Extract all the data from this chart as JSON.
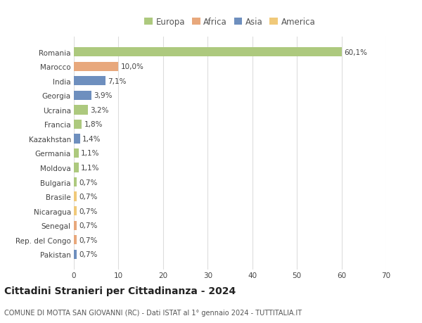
{
  "title": "Cittadini Stranieri per Cittadinanza - 2024",
  "subtitle": "COMUNE DI MOTTA SAN GIOVANNI (RC) - Dati ISTAT al 1° gennaio 2024 - TUTTITALIA.IT",
  "categories": [
    "Romania",
    "Marocco",
    "India",
    "Georgia",
    "Ucraina",
    "Francia",
    "Kazakhstan",
    "Germania",
    "Moldova",
    "Bulgaria",
    "Brasile",
    "Nicaragua",
    "Senegal",
    "Rep. del Congo",
    "Pakistan"
  ],
  "values": [
    60.1,
    10.0,
    7.1,
    3.9,
    3.2,
    1.8,
    1.4,
    1.1,
    1.1,
    0.7,
    0.7,
    0.7,
    0.7,
    0.7,
    0.7
  ],
  "labels": [
    "60,1%",
    "10,0%",
    "7,1%",
    "3,9%",
    "3,2%",
    "1,8%",
    "1,4%",
    "1,1%",
    "1,1%",
    "0,7%",
    "0,7%",
    "0,7%",
    "0,7%",
    "0,7%",
    "0,7%"
  ],
  "colors": [
    "#adc97e",
    "#e8a87c",
    "#6e8fbe",
    "#6e8fbe",
    "#adc97e",
    "#adc97e",
    "#6e8fbe",
    "#adc97e",
    "#adc97e",
    "#adc97e",
    "#f0c97a",
    "#f0c97a",
    "#e8a87c",
    "#e8a87c",
    "#6e8fbe"
  ],
  "legend": [
    {
      "label": "Europa",
      "color": "#adc97e"
    },
    {
      "label": "Africa",
      "color": "#e8a87c"
    },
    {
      "label": "Asia",
      "color": "#6e8fbe"
    },
    {
      "label": "America",
      "color": "#f0c97a"
    }
  ],
  "xlim": [
    0,
    70
  ],
  "xticks": [
    0,
    10,
    20,
    30,
    40,
    50,
    60,
    70
  ],
  "background_color": "#ffffff",
  "grid_color": "#dddddd",
  "bar_height": 0.65,
  "label_fontsize": 7.5,
  "tick_fontsize": 7.5,
  "title_fontsize": 10,
  "subtitle_fontsize": 7,
  "legend_fontsize": 8.5
}
